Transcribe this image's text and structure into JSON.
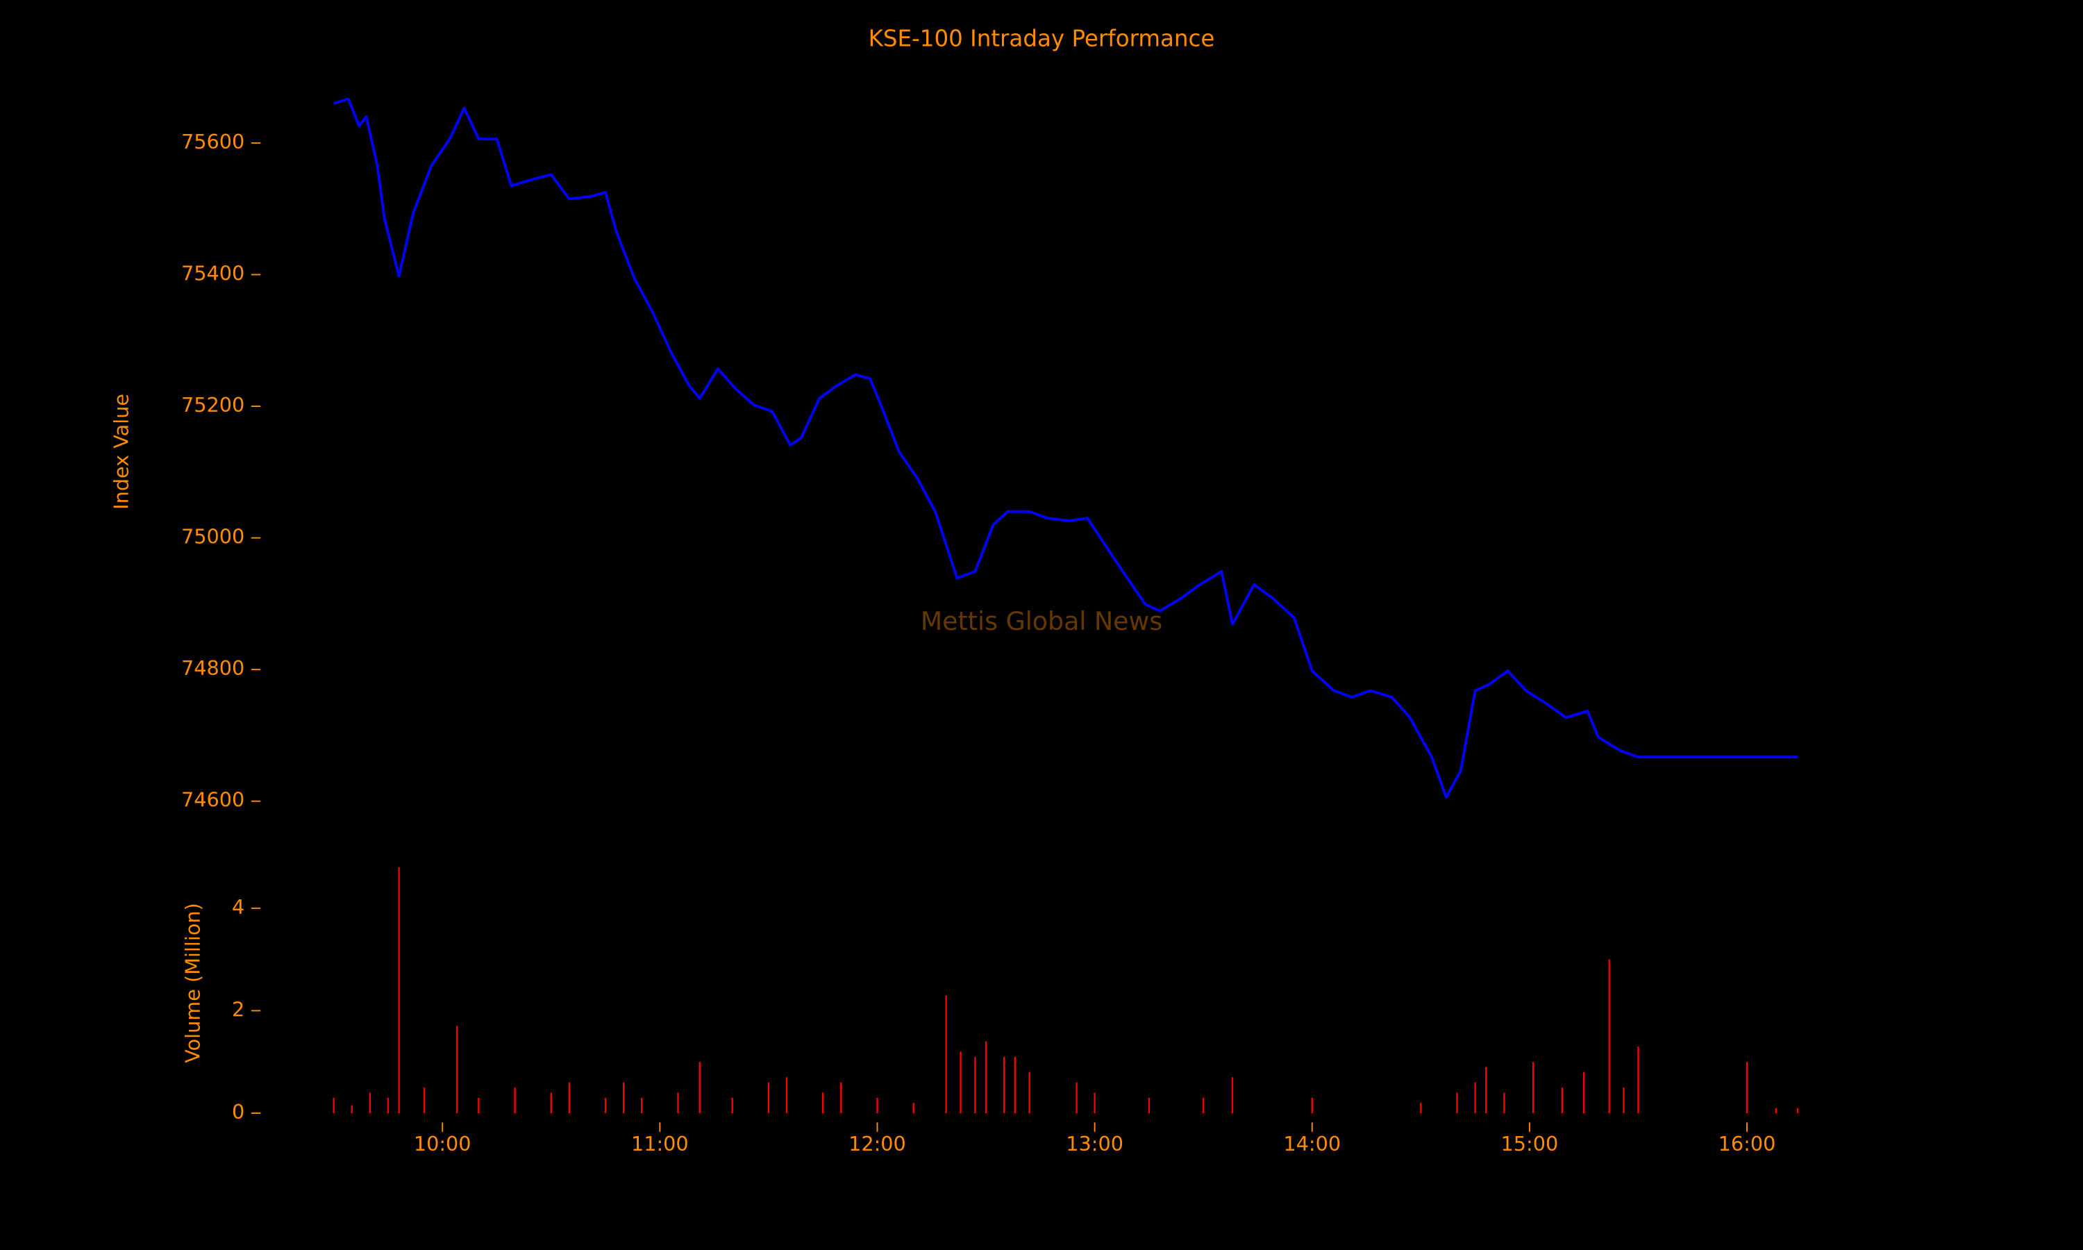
{
  "chart_data": [
    {
      "type": "line",
      "title": "KSE-100 Intraday Performance",
      "ylabel": "Index Value",
      "annotation": "Mettis Global News",
      "color": "#0000ff",
      "xlim": [
        "09:12",
        "16:30"
      ],
      "ylim": [
        74570,
        75680
      ],
      "yticks": [
        74600,
        74800,
        75000,
        75200,
        75400,
        75600
      ],
      "grid": false,
      "x": [
        "09:30",
        "09:34",
        "09:37",
        "09:39",
        "09:42",
        "09:44",
        "09:48",
        "09:52",
        "09:57",
        "10:02",
        "10:06",
        "10:10",
        "10:15",
        "10:19",
        "10:25",
        "10:30",
        "10:35",
        "10:41",
        "10:45",
        "10:48",
        "10:53",
        "10:58",
        "11:03",
        "11:08",
        "11:11",
        "11:16",
        "11:21",
        "11:26",
        "11:31",
        "11:36",
        "11:39",
        "11:44",
        "11:49",
        "11:54",
        "11:58",
        "12:01",
        "12:06",
        "12:11",
        "12:16",
        "12:22",
        "12:27",
        "12:32",
        "12:36",
        "12:42",
        "12:47",
        "12:53",
        "12:58",
        "13:04",
        "13:09",
        "13:14",
        "13:18",
        "13:24",
        "13:29",
        "13:35",
        "13:38",
        "13:44",
        "13:49",
        "13:55",
        "14:00",
        "14:06",
        "14:11",
        "14:16",
        "14:22",
        "14:27",
        "14:33",
        "14:37",
        "14:41",
        "14:45",
        "14:49",
        "14:54",
        "14:59",
        "15:05",
        "15:10",
        "15:16",
        "15:19",
        "15:25",
        "15:30",
        "16:14"
      ],
      "values": [
        75660,
        75667,
        75626,
        75640,
        75566,
        75485,
        75398,
        75495,
        75566,
        75606,
        75653,
        75606,
        75606,
        75535,
        75545,
        75552,
        75515,
        75519,
        75525,
        75465,
        75394,
        75343,
        75283,
        75232,
        75212,
        75257,
        75226,
        75202,
        75192,
        75141,
        75152,
        75212,
        75232,
        75248,
        75242,
        75202,
        75131,
        75091,
        75040,
        74939,
        74949,
        75020,
        75040,
        75040,
        75030,
        75026,
        75030,
        74980,
        74939,
        74899,
        74889,
        74909,
        74929,
        74949,
        74869,
        74929,
        74909,
        74879,
        74798,
        74768,
        74758,
        74768,
        74758,
        74727,
        74667,
        74606,
        74646,
        74768,
        74778,
        74798,
        74768,
        74747,
        74727,
        74737,
        74697,
        74677,
        74667,
        74667
      ]
    },
    {
      "type": "bar",
      "ylabel": "Volume (Million)",
      "color": "#ff0000",
      "xlim": [
        "09:12",
        "16:30"
      ],
      "xticks": [
        "10:00",
        "11:00",
        "12:00",
        "13:00",
        "14:00",
        "15:00",
        "16:00"
      ],
      "ylim": [
        0,
        4.9
      ],
      "yticks": [
        0,
        2,
        4
      ],
      "grid": false,
      "x": [
        "09:30",
        "09:35",
        "09:40",
        "09:45",
        "09:48",
        "09:55",
        "10:04",
        "10:10",
        "10:20",
        "10:30",
        "10:35",
        "10:45",
        "10:50",
        "10:55",
        "11:05",
        "11:11",
        "11:20",
        "11:30",
        "11:35",
        "11:45",
        "11:50",
        "12:00",
        "12:10",
        "12:19",
        "12:23",
        "12:27",
        "12:30",
        "12:35",
        "12:38",
        "12:42",
        "12:55",
        "13:00",
        "13:15",
        "13:30",
        "13:38",
        "14:00",
        "14:30",
        "14:40",
        "14:45",
        "14:48",
        "14:53",
        "15:01",
        "15:09",
        "15:15",
        "15:22",
        "15:26",
        "15:30",
        "16:00",
        "16:08",
        "16:14"
      ],
      "values": [
        0.3,
        0.15,
        0.4,
        0.3,
        4.8,
        0.5,
        1.7,
        0.3,
        0.5,
        0.4,
        0.6,
        0.3,
        0.6,
        0.3,
        0.4,
        1.0,
        0.3,
        0.6,
        0.7,
        0.4,
        0.6,
        0.3,
        0.2,
        2.3,
        1.2,
        1.1,
        1.4,
        1.1,
        1.1,
        0.8,
        0.6,
        0.4,
        0.3,
        0.3,
        0.7,
        0.3,
        0.2,
        0.4,
        0.6,
        0.9,
        0.4,
        1.0,
        0.5,
        0.8,
        3.0,
        0.5,
        1.3,
        1.0,
        0.1,
        0.1
      ]
    }
  ]
}
